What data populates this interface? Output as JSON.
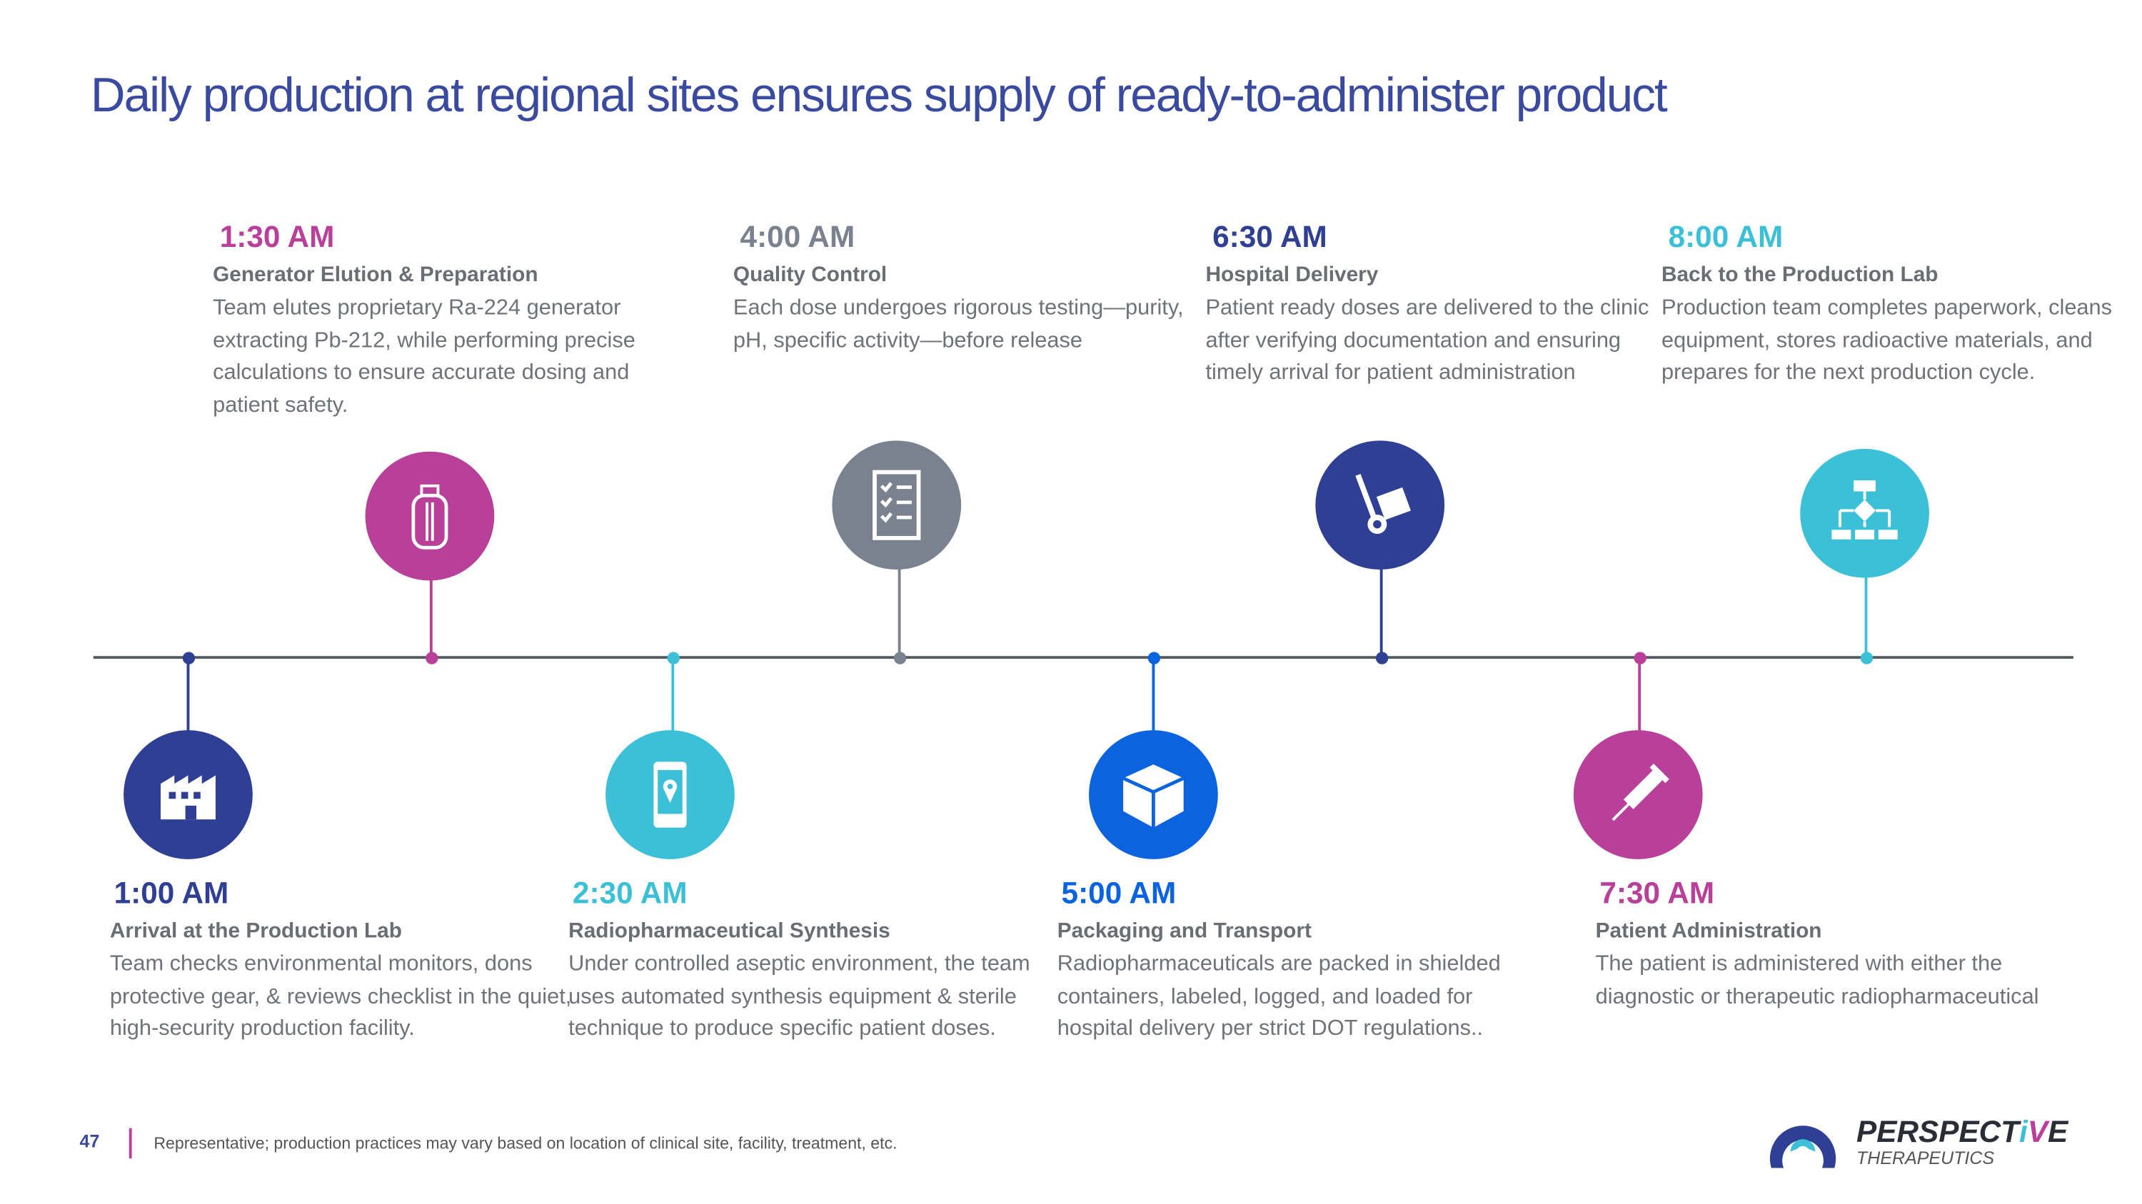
{
  "title": "Daily production at regional sites ensures supply of ready-to-administer product",
  "colors": {
    "title": "#3a4a9f",
    "magenta": "#b8409a",
    "gray": "#7a8290",
    "navy": "#2e3f94",
    "cyan": "#3cc0d8",
    "blue": "#0b63e0"
  },
  "steps": [
    {
      "time": "1:00 AM",
      "heading": "Arrival at the Production Lab",
      "desc": "Team checks environmental monitors, dons protective gear, & reviews checklist in the quiet, high-security production facility.",
      "icon": "factory-icon",
      "color": "#2e3f94"
    },
    {
      "time": "1:30 AM",
      "heading": "Generator Elution & Preparation",
      "desc": "Team elutes proprietary Ra-224 generator extracting Pb-212, while performing precise calculations to ensure accurate dosing and patient safety.",
      "icon": "vial-icon",
      "color": "#b8409a"
    },
    {
      "time": "2:30 AM",
      "heading": "Radiopharmaceutical Synthesis",
      "desc": "Under controlled aseptic environment, the team uses automated synthesis equipment & sterile technique to produce specific patient doses.",
      "icon": "phone-location-icon",
      "color": "#3cc0d8"
    },
    {
      "time": "4:00 AM",
      "heading": "Quality Control",
      "desc": "Each dose undergoes rigorous testing—purity, pH, specific activity—before release",
      "icon": "checklist-icon",
      "color": "#7a8290"
    },
    {
      "time": "5:00 AM",
      "heading": "Packaging and Transport",
      "desc": "Radiopharmaceuticals are packed in shielded containers, labeled, logged, and loaded for hospital delivery per strict DOT regulations..",
      "icon": "box-icon",
      "color": "#0b63e0"
    },
    {
      "time": "6:30 AM",
      "heading": "Hospital Delivery",
      "desc": "Patient ready doses are delivered to the clinic after verifying documentation and ensuring timely arrival for patient administration",
      "icon": "hand-truck-icon",
      "color": "#2e3f94"
    },
    {
      "time": "7:30 AM",
      "heading": "Patient Administration",
      "desc": "The patient is administered with either the diagnostic or therapeutic radiopharmaceutical",
      "icon": "syringe-icon",
      "color": "#b8409a"
    },
    {
      "time": "8:00 AM",
      "heading": "Back to the Production Lab",
      "desc": "Production team completes paperwork, cleans equipment, stores radioactive materials, and prepares for the next production cycle.",
      "icon": "flowchart-icon",
      "color": "#3cc0d8"
    }
  ],
  "footer": {
    "page_number": "47",
    "note": "Representative; production practices may vary based on location of clinical site, facility, treatment, etc."
  },
  "logo": {
    "name": "PERSPECTIVE",
    "sub": "THERAPEUTICS"
  }
}
